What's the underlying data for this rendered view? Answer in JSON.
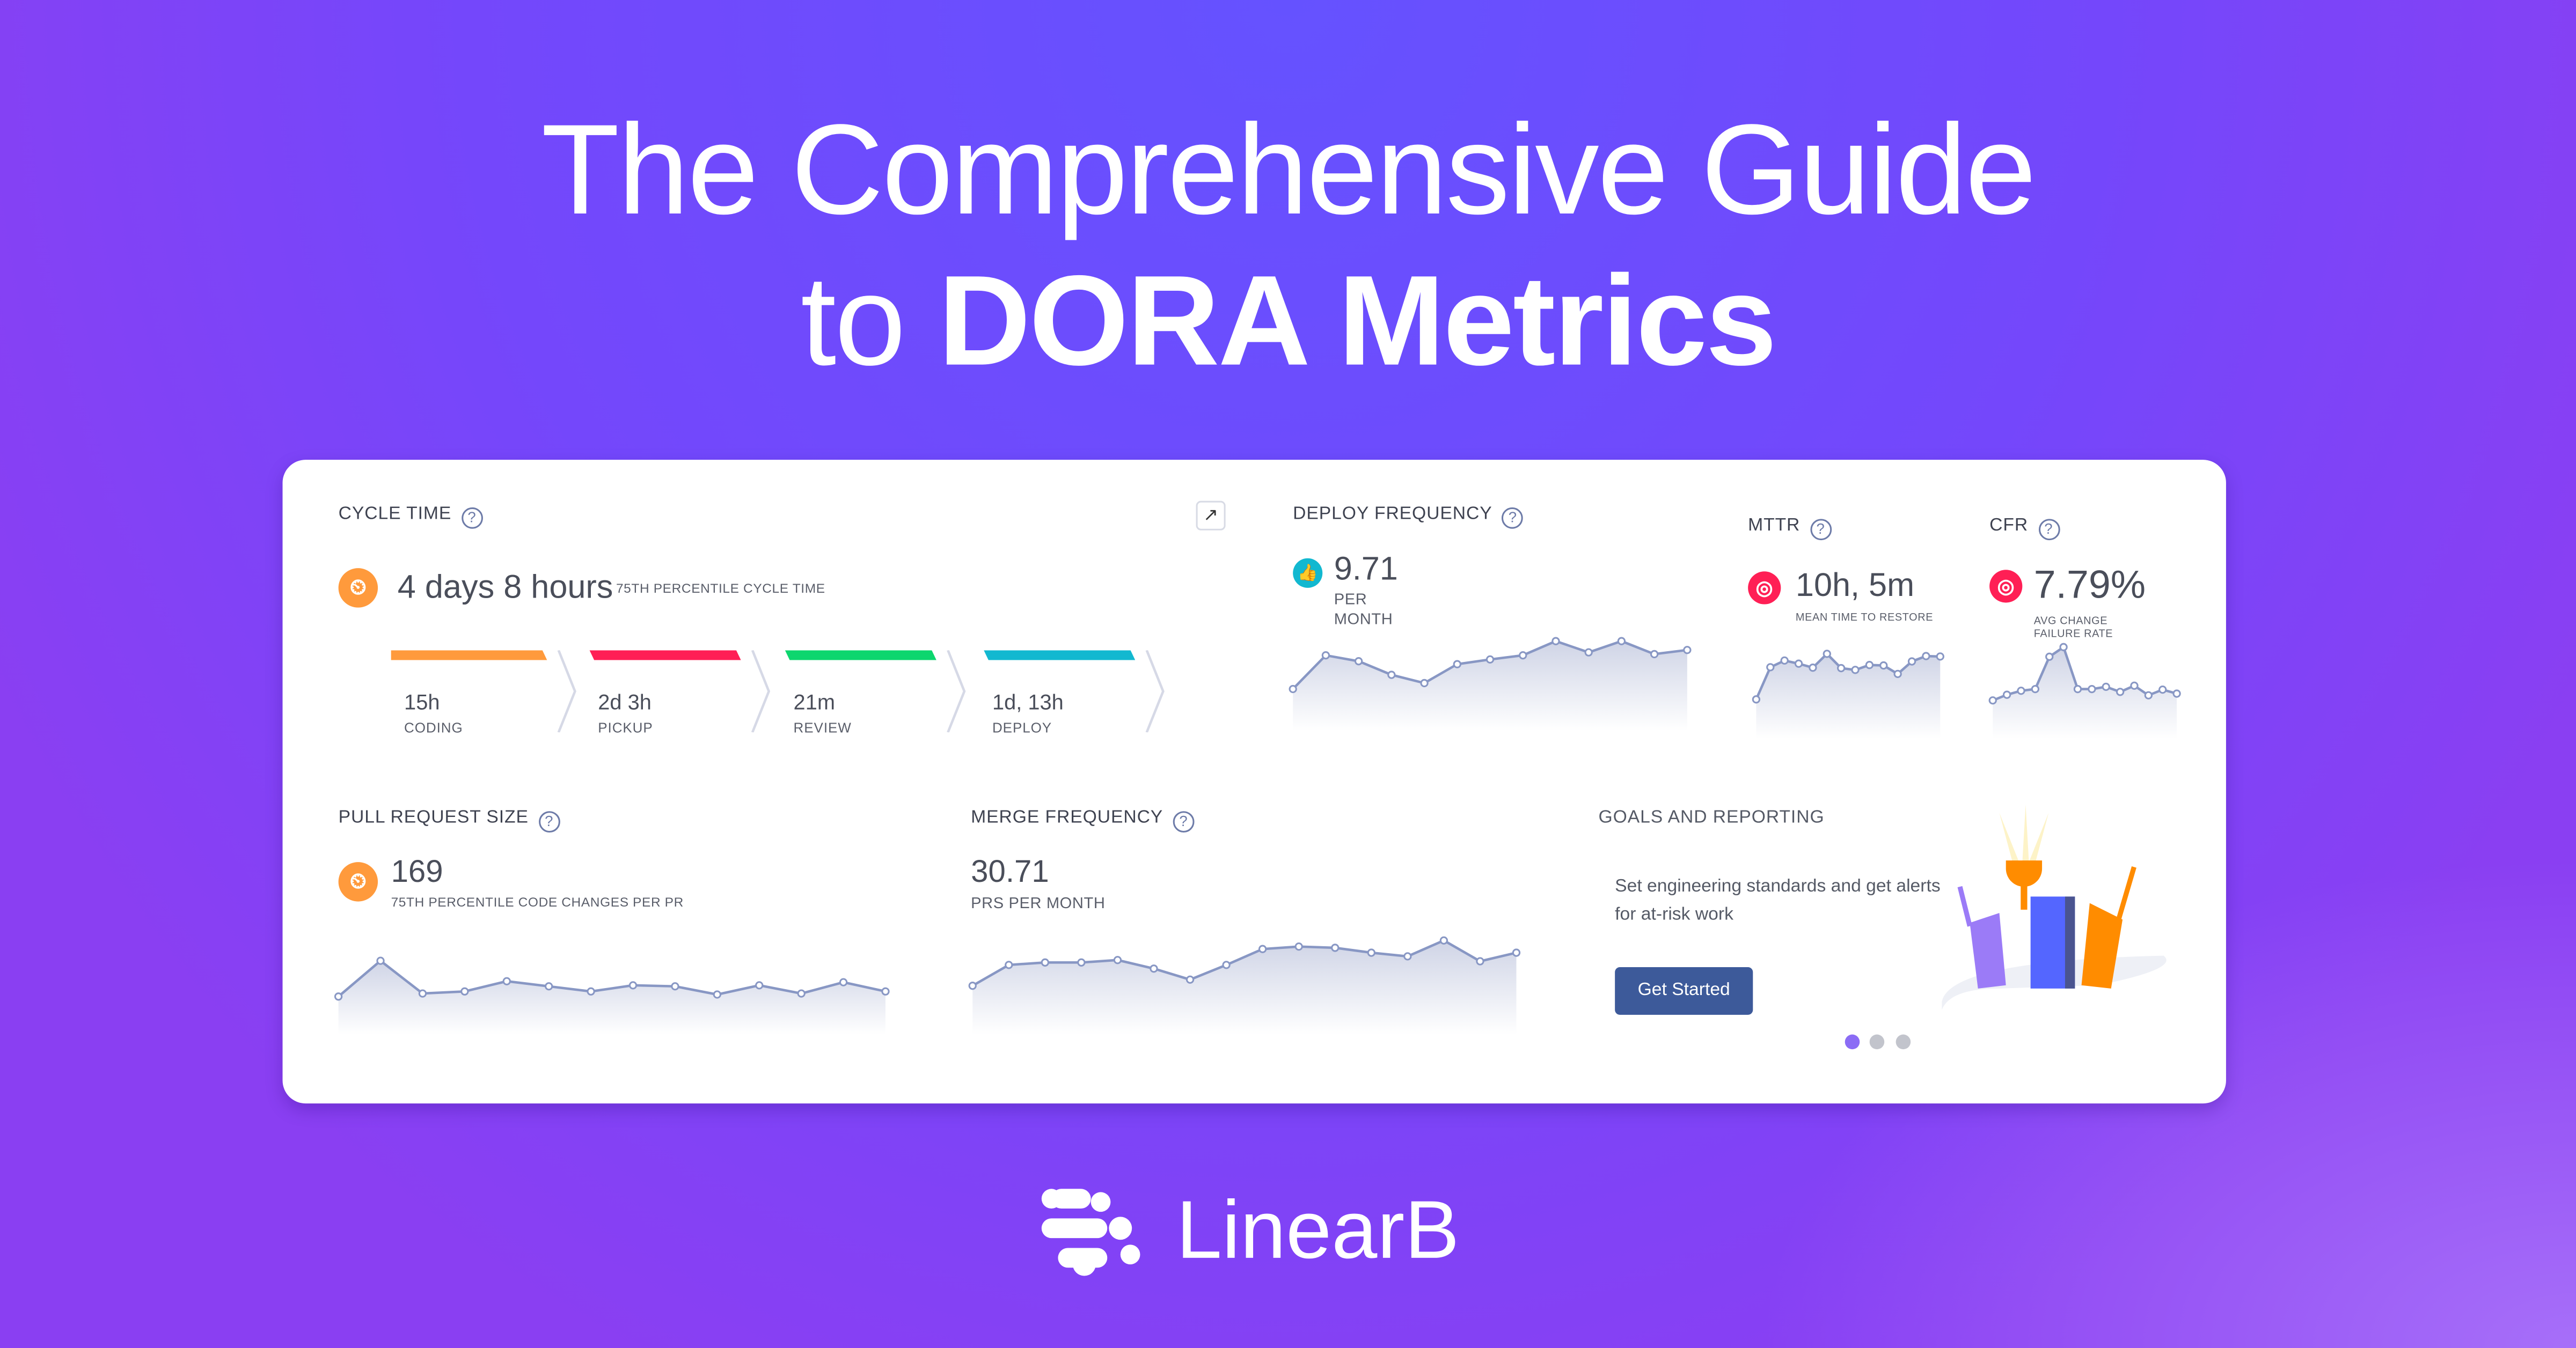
{
  "hero": {
    "line1": "The Comprehensive Guide",
    "line2_prefix": "to ",
    "line2_bold": "DORA Metrics"
  },
  "cycle_time": {
    "title": "CYCLE TIME",
    "help": "?",
    "value": "4 days 8 hours",
    "caption": "75TH PERCENTILE CYCLE TIME",
    "expand_icon": "↗",
    "stages": [
      {
        "value": "15h",
        "label": "CODING",
        "color": "#ff9a3c"
      },
      {
        "value": "2d 3h",
        "label": "PICKUP",
        "color": "#ff1f55"
      },
      {
        "value": "21m",
        "label": "REVIEW",
        "color": "#0dd66e"
      },
      {
        "value": "1d, 13h",
        "label": "DEPLOY",
        "color": "#12b8d0"
      }
    ]
  },
  "deploy_frequency": {
    "title": "DEPLOY FREQUENCY",
    "help": "?",
    "value": "9.71",
    "unit1": "PER",
    "unit2": "MONTH",
    "icon": "thumbs-up",
    "color": "#12b8d0"
  },
  "mttr": {
    "title": "MTTR",
    "help": "?",
    "value": "10h, 5m",
    "caption": "MEAN TIME TO RESTORE",
    "icon": "target",
    "color": "#ff1f55"
  },
  "cfr": {
    "title": "CFR",
    "help": "?",
    "value": "7.79%",
    "caption": "AVG CHANGE FAILURE RATE",
    "icon": "target",
    "color": "#ff1f55"
  },
  "pr_size": {
    "title": "PULL REQUEST SIZE",
    "help": "?",
    "value": "169",
    "caption": "75TH PERCENTILE CODE CHANGES PER PR",
    "icon": "gauge",
    "color": "#ff9a3c"
  },
  "merge_frequency": {
    "title": "MERGE FREQUENCY",
    "help": "?",
    "value": "30.71",
    "caption": "PRS PER MONTH"
  },
  "goals": {
    "title": "GOALS AND REPORTING",
    "text": "Set engineering standards and get alerts for at-risk work",
    "button": "Get Started",
    "carousel": {
      "count": 3,
      "active": 0
    }
  },
  "brand": {
    "name": "LinearB"
  },
  "chart_data": [
    {
      "type": "area",
      "name": "deploy_frequency",
      "values": [
        15,
        72,
        62,
        39,
        25,
        57,
        65,
        72,
        96,
        77,
        96,
        74,
        81
      ],
      "ylim": [
        0,
        100
      ]
    },
    {
      "type": "area",
      "name": "mttr",
      "values": [
        15,
        87,
        102,
        95,
        86,
        117,
        85,
        81,
        92,
        91,
        72,
        100,
        112,
        111
      ],
      "ylim": [
        0,
        125
      ]
    },
    {
      "type": "area",
      "name": "cfr",
      "values": [
        10,
        20,
        27,
        30,
        87,
        104,
        30,
        30,
        34,
        25,
        36,
        19,
        29,
        22
      ],
      "ylim": [
        0,
        110
      ]
    },
    {
      "type": "area",
      "name": "pr_size",
      "values": [
        5,
        40,
        8,
        10,
        20,
        15,
        10,
        16,
        15,
        7,
        16,
        8,
        19,
        10
      ],
      "ylim": [
        0,
        45
      ]
    },
    {
      "type": "area",
      "name": "merge_frequency",
      "values": [
        13,
        30,
        32,
        32,
        34,
        27,
        18,
        30,
        43,
        45,
        44,
        40,
        37,
        50,
        33,
        40
      ],
      "ylim": [
        0,
        55
      ]
    }
  ]
}
